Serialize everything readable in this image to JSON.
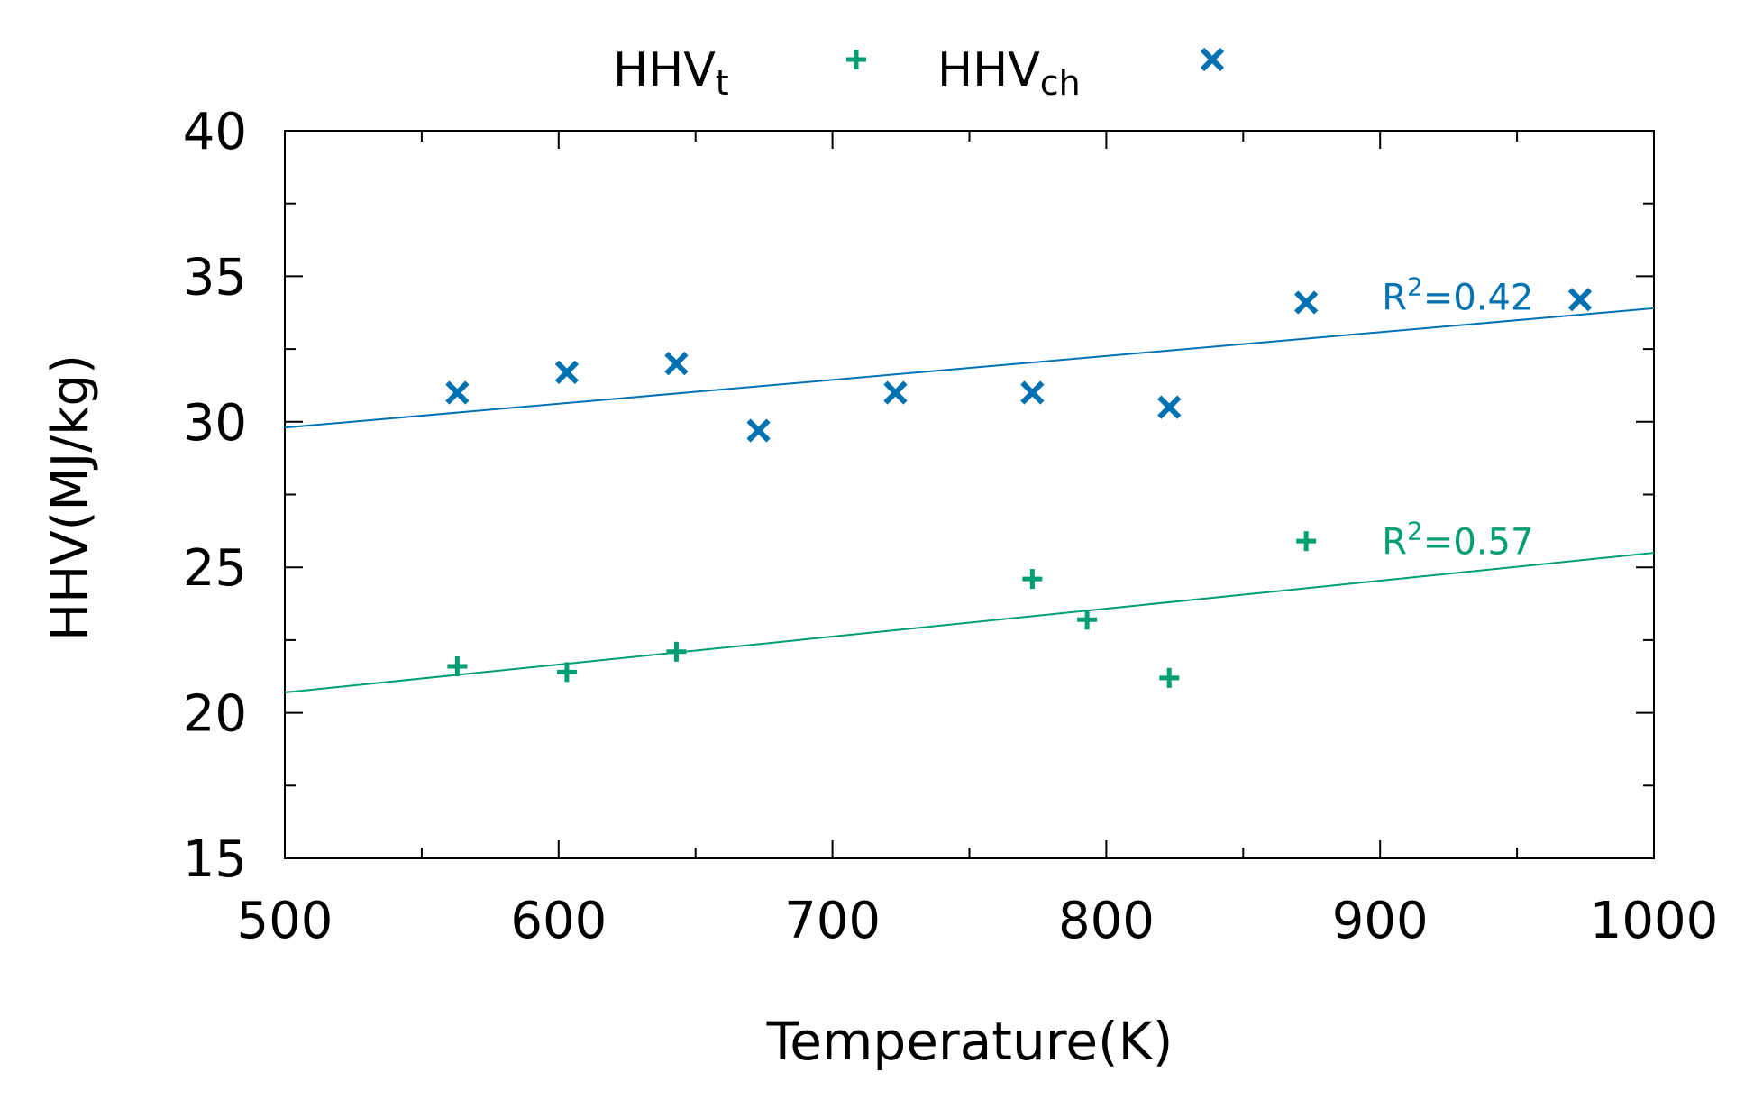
{
  "chart_data": {
    "type": "scatter",
    "title": "",
    "xlabel": "Temperature(K)",
    "ylabel": "HHV(MJ/kg)",
    "xlim": [
      500,
      1000
    ],
    "ylim": [
      15,
      40
    ],
    "xticks": [
      500,
      600,
      700,
      800,
      900,
      1000
    ],
    "yticks": [
      15,
      20,
      25,
      30,
      35,
      40
    ],
    "grid": false,
    "legend_position": "top-center",
    "series": [
      {
        "name": "HHV",
        "subscript": "t",
        "marker": "plus",
        "color": "#009e73",
        "x": [
          563,
          603,
          643,
          773,
          793,
          823,
          873
        ],
        "y": [
          21.6,
          21.4,
          22.1,
          24.6,
          23.2,
          21.2,
          25.9
        ],
        "fit": {
          "x": [
            500,
            1000
          ],
          "y": [
            20.7,
            25.5
          ]
        },
        "r2_label": {
          "base": "R",
          "sup": "2",
          "value": "=0.57",
          "x": 900,
          "y": 25.7
        }
      },
      {
        "name": "HHV",
        "subscript": "ch",
        "marker": "cross",
        "color": "#0072b2",
        "x": [
          563,
          603,
          643,
          673,
          723,
          773,
          823,
          873,
          973
        ],
        "y": [
          31.0,
          31.7,
          32.0,
          29.7,
          31.0,
          31.0,
          30.5,
          34.1,
          34.2
        ],
        "fit": {
          "x": [
            500,
            1000
          ],
          "y": [
            29.8,
            33.9
          ]
        },
        "r2_label": {
          "base": "R",
          "sup": "2",
          "value": "=0.42",
          "x": 900,
          "y": 34.1
        }
      }
    ]
  }
}
